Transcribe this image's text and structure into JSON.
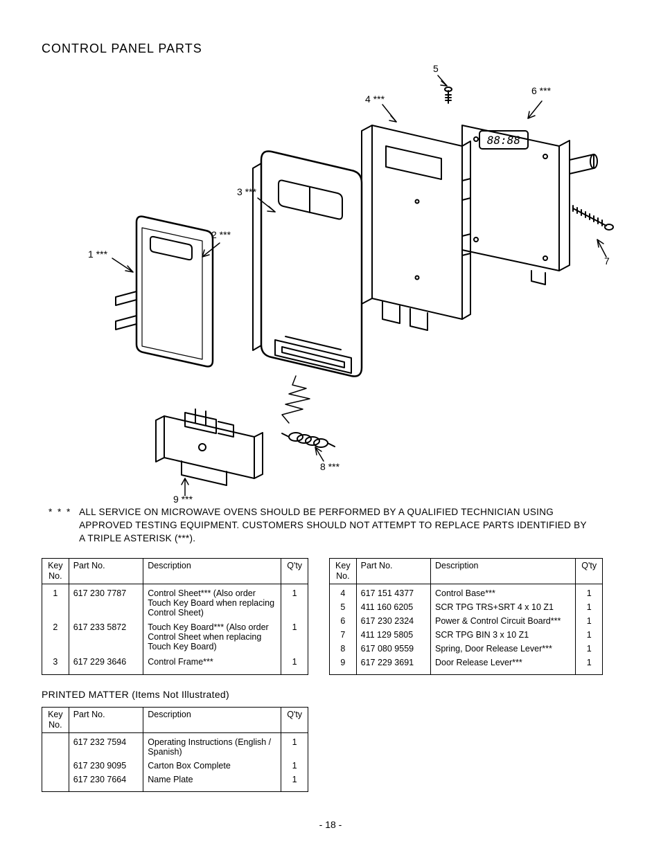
{
  "title": "CONTROL PANEL PARTS",
  "callouts": {
    "c1": "1 ***",
    "c2": "2 ***",
    "c3": "3 ***",
    "c4": "4 ***",
    "c5": "5",
    "c6": "6 ***",
    "c7": "7",
    "c8": "8 ***",
    "c9": "9 ***"
  },
  "warning_stars": "* * *",
  "warning_text": "ALL SERVICE ON MICROWAVE OVENS SHOULD BE PERFORMED BY A QUALIFIED TECHNICIAN USING APPROVED TESTING EQUIPMENT.  CUSTOMERS SHOULD NOT ATTEMPT TO REPLACE PARTS IDENTIFIED BY A TRIPLE ASTERISK (***).",
  "headers": {
    "key": "Key\nNo.",
    "part": "Part No.",
    "desc": "Description",
    "qty": "Q'ty"
  },
  "table_left": [
    {
      "key": "1",
      "part": "617 230 7787",
      "desc": "Control Sheet*** (Also order Touch Key Board when replacing Control Sheet)",
      "qty": "1"
    },
    {
      "key": "2",
      "part": "617 233 5872",
      "desc": "Touch Key Board*** (Also order Control Sheet when replacing Touch Key Board)",
      "qty": "1"
    },
    {
      "key": "3",
      "part": "617 229 3646",
      "desc": "Control Frame***",
      "qty": "1"
    }
  ],
  "table_right": [
    {
      "key": "4",
      "part": "617 151 4377",
      "desc": "Control Base***",
      "qty": "1"
    },
    {
      "key": "5",
      "part": "411 160 6205",
      "desc": "SCR TPG TRS+SRT 4 x 10 Z1",
      "qty": "1"
    },
    {
      "key": "6",
      "part": "617 230 2324",
      "desc": "Power & Control Circuit Board***",
      "qty": "1"
    },
    {
      "key": "7",
      "part": "411 129 5805",
      "desc": "SCR TPG BIN 3 x 10 Z1",
      "qty": "1"
    },
    {
      "key": "8",
      "part": "617 080 9559",
      "desc": "Spring, Door Release Lever***",
      "qty": "1"
    },
    {
      "key": "9",
      "part": "617 229 3691",
      "desc": "Door Release Lever***",
      "qty": "1"
    }
  ],
  "printed_matter_title": "PRINTED MATTER (Items Not Illustrated)",
  "table_printed": [
    {
      "key": "",
      "part": "617 232 7594",
      "desc": "Operating Instructions (English / Spanish)",
      "qty": "1"
    },
    {
      "key": "",
      "part": "617 230 9095",
      "desc": "Carton Box Complete",
      "qty": "1"
    },
    {
      "key": "",
      "part": "617 230 7664",
      "desc": "Name Plate",
      "qty": "1"
    }
  ],
  "page_number": "- 18 -",
  "colors": {
    "stroke": "#000000",
    "bg": "#ffffff"
  }
}
